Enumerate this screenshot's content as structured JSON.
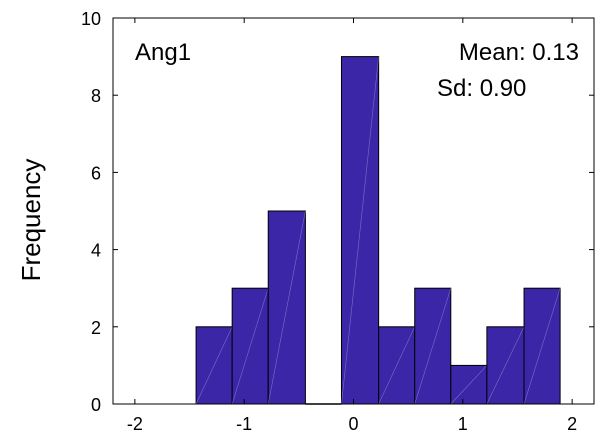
{
  "chart_data": {
    "type": "bar",
    "title": "",
    "xlabel": "",
    "ylabel": "Frequency",
    "annotations": {
      "panel_label": "Ang1",
      "mean_text": "Mean: 0.13",
      "sd_text": "Sd: 0.90"
    },
    "bins": [
      {
        "x0": -1.44,
        "x1": -1.11,
        "count": 2
      },
      {
        "x0": -1.11,
        "x1": -0.78,
        "count": 3
      },
      {
        "x0": -0.78,
        "x1": -0.44,
        "count": 5
      },
      {
        "x0": -0.44,
        "x1": -0.11,
        "count": 0
      },
      {
        "x0": -0.11,
        "x1": 0.23,
        "count": 9
      },
      {
        "x0": 0.23,
        "x1": 0.56,
        "count": 2
      },
      {
        "x0": 0.56,
        "x1": 0.89,
        "count": 3
      },
      {
        "x0": 0.89,
        "x1": 1.22,
        "count": 1
      },
      {
        "x0": 1.22,
        "x1": 1.56,
        "count": 2
      },
      {
        "x0": 1.56,
        "x1": 1.89,
        "count": 3
      }
    ],
    "xlim": [
      -2.2,
      2.2
    ],
    "ylim": [
      0,
      10
    ],
    "xticks": [
      -2,
      -1,
      0,
      1,
      2
    ],
    "yticks": [
      0,
      2,
      4,
      6,
      8,
      10
    ],
    "grid": false,
    "bar_color": "#3a26a6",
    "edge_color": "#000000"
  }
}
